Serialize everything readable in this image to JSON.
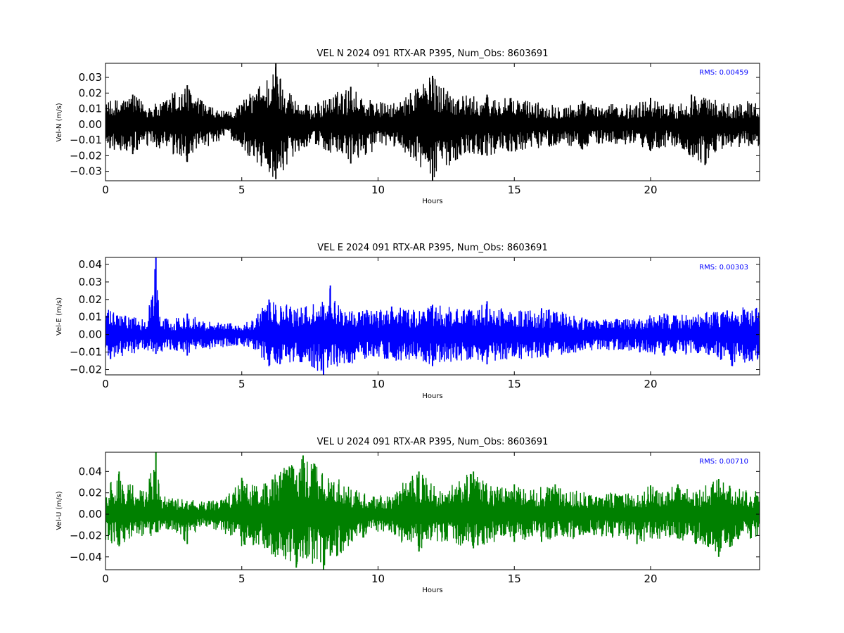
{
  "chart_data": [
    {
      "type": "line",
      "title": "VEL N 2024 091 RTX-AR  P395, Num_Obs: 8603691",
      "xlabel": "Hours",
      "ylabel": "Vel-N (m/s)",
      "xlim": [
        0,
        24
      ],
      "ylim": [
        -0.036,
        0.039
      ],
      "xticks": [
        0,
        5,
        10,
        15,
        20
      ],
      "xtick_labels": [
        "0",
        "5",
        "10",
        "15",
        "20"
      ],
      "yticks": [
        -0.03,
        -0.02,
        -0.01,
        0.0,
        0.01,
        0.02,
        0.03
      ],
      "ytick_labels": [
        "−0.03",
        "−0.02",
        "−0.01",
        "0.00",
        "0.01",
        "0.02",
        "0.03"
      ],
      "annotation": "RMS:  0.00459",
      "color": "#000000",
      "grid": false,
      "series": [
        {
          "x": [
            0,
            0.5,
            1,
            1.5,
            2,
            2.5,
            3,
            3.5,
            4,
            4.5,
            5,
            5.5,
            6,
            6.25,
            6.5,
            7,
            7.5,
            8,
            8.5,
            9,
            9.5,
            10,
            10.5,
            11,
            11.5,
            12,
            12.5,
            13,
            13.5,
            14,
            14.5,
            15,
            15.5,
            16,
            16.5,
            17,
            17.5,
            18,
            18.5,
            19,
            19.5,
            20,
            20.5,
            21,
            21.5,
            22,
            22.5,
            23,
            23.5,
            24
          ],
          "y_max": [
            0.014,
            0.017,
            0.019,
            0.014,
            0.013,
            0.022,
            0.025,
            0.016,
            0.01,
            0.008,
            0.015,
            0.023,
            0.033,
            0.039,
            0.03,
            0.016,
            0.012,
            0.016,
            0.021,
            0.024,
            0.018,
            0.015,
            0.013,
            0.017,
            0.029,
            0.031,
            0.025,
            0.02,
            0.018,
            0.019,
            0.017,
            0.017,
            0.016,
            0.014,
            0.014,
            0.013,
            0.015,
            0.012,
            0.013,
            0.013,
            0.014,
            0.017,
            0.014,
            0.013,
            0.019,
            0.018,
            0.015,
            0.014,
            0.015,
            0.015
          ],
          "y_min": [
            -0.015,
            -0.018,
            -0.019,
            -0.015,
            -0.016,
            -0.022,
            -0.024,
            -0.018,
            -0.012,
            -0.008,
            -0.016,
            -0.025,
            -0.033,
            -0.035,
            -0.03,
            -0.018,
            -0.013,
            -0.016,
            -0.022,
            -0.025,
            -0.02,
            -0.016,
            -0.014,
            -0.018,
            -0.03,
            -0.036,
            -0.028,
            -0.021,
            -0.019,
            -0.02,
            -0.018,
            -0.018,
            -0.017,
            -0.015,
            -0.014,
            -0.014,
            -0.016,
            -0.013,
            -0.013,
            -0.013,
            -0.015,
            -0.017,
            -0.015,
            -0.014,
            -0.024,
            -0.026,
            -0.017,
            -0.015,
            -0.015,
            -0.014
          ]
        }
      ]
    },
    {
      "type": "line",
      "title": "VEL E 2024 091 RTX-AR  P395, Num_Obs: 8603691",
      "xlabel": "Hours",
      "ylabel": "Vel-E (m/s)",
      "xlim": [
        0,
        24
      ],
      "ylim": [
        -0.023,
        0.044
      ],
      "xticks": [
        0,
        5,
        10,
        15,
        20
      ],
      "xtick_labels": [
        "0",
        "5",
        "10",
        "15",
        "20"
      ],
      "yticks": [
        -0.02,
        -0.01,
        0.0,
        0.01,
        0.02,
        0.03,
        0.04
      ],
      "ytick_labels": [
        "−0.02",
        "−0.01",
        "0.00",
        "0.01",
        "0.02",
        "0.03",
        "0.04"
      ],
      "annotation": "RMS:  0.00303",
      "color": "#0000ff",
      "grid": false,
      "series": [
        {
          "x": [
            0,
            0.5,
            1,
            1.5,
            1.85,
            2,
            2.5,
            3,
            3.5,
            4,
            4.5,
            5,
            5.5,
            6,
            6.5,
            7,
            7.5,
            8,
            8.25,
            8.5,
            9,
            9.5,
            10,
            10.5,
            11,
            11.5,
            12,
            12.5,
            13,
            13.5,
            14,
            14.5,
            15,
            15.5,
            16,
            16.5,
            17,
            17.5,
            18,
            18.5,
            19,
            19.5,
            20,
            20.5,
            21,
            21.5,
            22,
            22.5,
            23,
            23.5,
            24
          ],
          "y_max": [
            0.015,
            0.012,
            0.01,
            0.009,
            0.044,
            0.01,
            0.009,
            0.012,
            0.009,
            0.008,
            0.007,
            0.006,
            0.01,
            0.02,
            0.018,
            0.016,
            0.017,
            0.019,
            0.028,
            0.018,
            0.016,
            0.015,
            0.014,
            0.016,
            0.015,
            0.014,
            0.017,
            0.016,
            0.015,
            0.014,
            0.019,
            0.016,
            0.014,
            0.014,
            0.015,
            0.014,
            0.012,
            0.01,
            0.009,
            0.009,
            0.009,
            0.01,
            0.011,
            0.012,
            0.011,
            0.012,
            0.013,
            0.014,
            0.015,
            0.016,
            0.016
          ],
          "y_min": [
            -0.015,
            -0.013,
            -0.011,
            -0.009,
            -0.011,
            -0.01,
            -0.009,
            -0.012,
            -0.009,
            -0.008,
            -0.007,
            -0.006,
            -0.01,
            -0.018,
            -0.017,
            -0.016,
            -0.018,
            -0.023,
            -0.019,
            -0.019,
            -0.017,
            -0.015,
            -0.014,
            -0.015,
            -0.015,
            -0.014,
            -0.018,
            -0.016,
            -0.015,
            -0.014,
            -0.017,
            -0.015,
            -0.014,
            -0.014,
            -0.014,
            -0.013,
            -0.012,
            -0.01,
            -0.009,
            -0.009,
            -0.009,
            -0.01,
            -0.011,
            -0.012,
            -0.011,
            -0.012,
            -0.013,
            -0.014,
            -0.018,
            -0.016,
            -0.015
          ]
        }
      ]
    },
    {
      "type": "line",
      "title": "VEL U 2024 091 RTX-AR  P395, Num_Obs: 8603691",
      "xlabel": "Hours",
      "ylabel": "Vel-U (m/s)",
      "xlim": [
        0,
        24
      ],
      "ylim": [
        -0.052,
        0.058
      ],
      "xticks": [
        0,
        5,
        10,
        15,
        20
      ],
      "xtick_labels": [
        "0",
        "5",
        "10",
        "15",
        "20"
      ],
      "yticks": [
        -0.04,
        -0.02,
        0.0,
        0.02,
        0.04
      ],
      "ytick_labels": [
        "−0.04",
        "−0.02",
        "0.00",
        "0.02",
        "0.04"
      ],
      "annotation": "RMS:  0.00710",
      "color": "#008000",
      "grid": false,
      "series": [
        {
          "x": [
            0,
            0.5,
            1,
            1.5,
            1.85,
            2,
            2.5,
            3,
            3.5,
            4,
            4.5,
            5,
            5.5,
            6,
            6.5,
            7,
            7.25,
            7.5,
            8,
            8.5,
            9,
            9.5,
            10,
            10.5,
            11,
            11.5,
            12,
            12.5,
            13,
            13.5,
            14,
            14.5,
            15,
            15.5,
            16,
            16.5,
            17,
            17.5,
            18,
            18.5,
            19,
            19.5,
            20,
            20.5,
            21,
            21.5,
            22,
            22.5,
            23,
            23.5,
            24
          ],
          "y_max": [
            0.026,
            0.04,
            0.027,
            0.024,
            0.058,
            0.018,
            0.015,
            0.014,
            0.012,
            0.013,
            0.02,
            0.034,
            0.028,
            0.03,
            0.048,
            0.05,
            0.055,
            0.052,
            0.04,
            0.035,
            0.025,
            0.02,
            0.018,
            0.017,
            0.034,
            0.04,
            0.03,
            0.022,
            0.036,
            0.04,
            0.03,
            0.025,
            0.028,
            0.022,
            0.026,
            0.028,
            0.024,
            0.022,
            0.018,
            0.02,
            0.022,
            0.024,
            0.027,
            0.024,
            0.028,
            0.022,
            0.028,
            0.033,
            0.026,
            0.024,
            0.022
          ],
          "y_min": [
            -0.025,
            -0.03,
            -0.025,
            -0.022,
            -0.02,
            -0.018,
            -0.015,
            -0.028,
            -0.012,
            -0.014,
            -0.022,
            -0.03,
            -0.032,
            -0.036,
            -0.048,
            -0.05,
            -0.045,
            -0.046,
            -0.052,
            -0.04,
            -0.03,
            -0.022,
            -0.018,
            -0.02,
            -0.03,
            -0.035,
            -0.028,
            -0.025,
            -0.03,
            -0.032,
            -0.028,
            -0.025,
            -0.026,
            -0.024,
            -0.026,
            -0.025,
            -0.024,
            -0.022,
            -0.02,
            -0.022,
            -0.024,
            -0.028,
            -0.026,
            -0.024,
            -0.025,
            -0.028,
            -0.03,
            -0.04,
            -0.03,
            -0.025,
            -0.022
          ]
        }
      ]
    }
  ]
}
